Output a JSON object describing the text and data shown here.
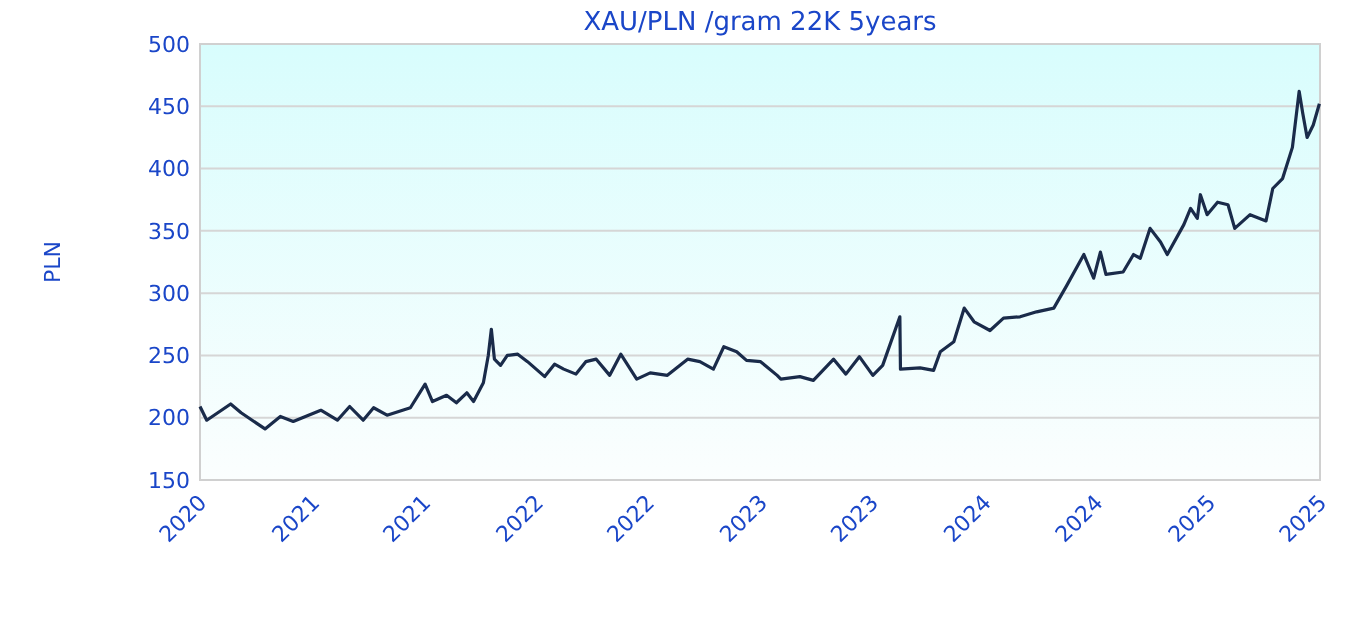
{
  "chart_data": {
    "type": "line",
    "title": "XAU/PLN /gram 22K 5years",
    "ylabel": "PLN",
    "x": [
      "2020-07-01",
      "2020-07-12",
      "2020-08-20",
      "2020-09-06",
      "2020-10-15",
      "2020-11-09",
      "2020-11-30",
      "2021-01-14",
      "2021-02-10",
      "2021-03-02",
      "2021-03-24",
      "2021-04-10",
      "2021-05-02",
      "2021-06-09",
      "2021-07-03",
      "2021-07-15",
      "2021-08-07",
      "2021-08-23",
      "2021-09-09",
      "2021-09-20",
      "2021-10-06",
      "2021-10-14",
      "2021-10-19",
      "2021-10-24",
      "2021-11-03",
      "2021-11-14",
      "2021-12-01",
      "2021-12-17",
      "2022-01-14",
      "2022-01-30",
      "2022-02-14",
      "2022-03-06",
      "2022-03-22",
      "2022-04-08",
      "2022-04-30",
      "2022-05-18",
      "2022-06-13",
      "2022-07-05",
      "2022-08-02",
      "2022-09-04",
      "2022-09-24",
      "2022-10-16",
      "2022-11-02",
      "2022-11-23",
      "2022-12-09",
      "2023-01-01",
      "2023-01-28",
      "2023-02-03",
      "2023-03-06",
      "2023-03-28",
      "2023-04-30",
      "2023-05-20",
      "2023-06-11",
      "2023-07-03",
      "2023-07-19",
      "2023-08-16",
      "2023-08-17",
      "2023-09-18",
      "2023-10-10",
      "2023-10-21",
      "2023-11-12",
      "2023-11-29",
      "2023-12-15",
      "2024-01-10",
      "2024-02-01",
      "2024-02-28",
      "2024-03-26",
      "2024-04-23",
      "2024-05-14",
      "2024-06-11",
      "2024-06-27",
      "2024-07-08",
      "2024-07-17",
      "2024-08-14",
      "2024-08-31",
      "2024-09-11",
      "2024-09-27",
      "2024-10-14",
      "2024-10-25",
      "2024-11-21",
      "2024-12-02",
      "2024-12-13",
      "2024-12-18",
      "2024-12-29",
      "2025-01-15",
      "2025-02-01",
      "2025-02-12",
      "2025-03-09",
      "2025-04-04",
      "2025-04-15",
      "2025-05-01",
      "2025-05-17",
      "2025-05-28",
      "2025-06-03",
      "2025-06-10",
      "2025-06-20",
      "2025-06-30"
    ],
    "series": [
      {
        "color": "#1a2b4a",
        "values": [
          209,
          198,
          211,
          204,
          191,
          201,
          197,
          206,
          198,
          209,
          198,
          208,
          202,
          208,
          227,
          213,
          218,
          212,
          220,
          213,
          228,
          250,
          271,
          247,
          242,
          250,
          251,
          245,
          233,
          243,
          239,
          235,
          245,
          247,
          234,
          251,
          231,
          236,
          234,
          247,
          245,
          239,
          257,
          253,
          246,
          245,
          234,
          231,
          233,
          230,
          247,
          235,
          249,
          234,
          242,
          281,
          239,
          240,
          238,
          253,
          261,
          288,
          277,
          270,
          280,
          281,
          285,
          288,
          306,
          331,
          312,
          333,
          315,
          317,
          331,
          328,
          352,
          341,
          331,
          355,
          368,
          360,
          379,
          363,
          373,
          371,
          352,
          363,
          358,
          384,
          392,
          417,
          462,
          444,
          425,
          435,
          452
        ]
      }
    ],
    "xlim": [
      "2020-07-01",
      "2025-07-01"
    ],
    "xticks": [
      {
        "value": "2020-07-01",
        "label": "2020"
      },
      {
        "value": "2021-01-01",
        "label": "2021"
      },
      {
        "value": "2021-07-01",
        "label": "2021"
      },
      {
        "value": "2022-01-01",
        "label": "2022"
      },
      {
        "value": "2022-07-01",
        "label": "2022"
      },
      {
        "value": "2023-01-01",
        "label": "2023"
      },
      {
        "value": "2023-07-01",
        "label": "2023"
      },
      {
        "value": "2024-01-01",
        "label": "2024"
      },
      {
        "value": "2024-07-01",
        "label": "2024"
      },
      {
        "value": "2025-01-01",
        "label": "2025"
      },
      {
        "value": "2025-07-01",
        "label": "2025"
      }
    ],
    "ylim": [
      150,
      500
    ],
    "yticks": [
      150,
      200,
      250,
      300,
      350,
      400,
      450,
      500
    ],
    "grid": "y",
    "marker": "none",
    "line_style": "solid"
  }
}
